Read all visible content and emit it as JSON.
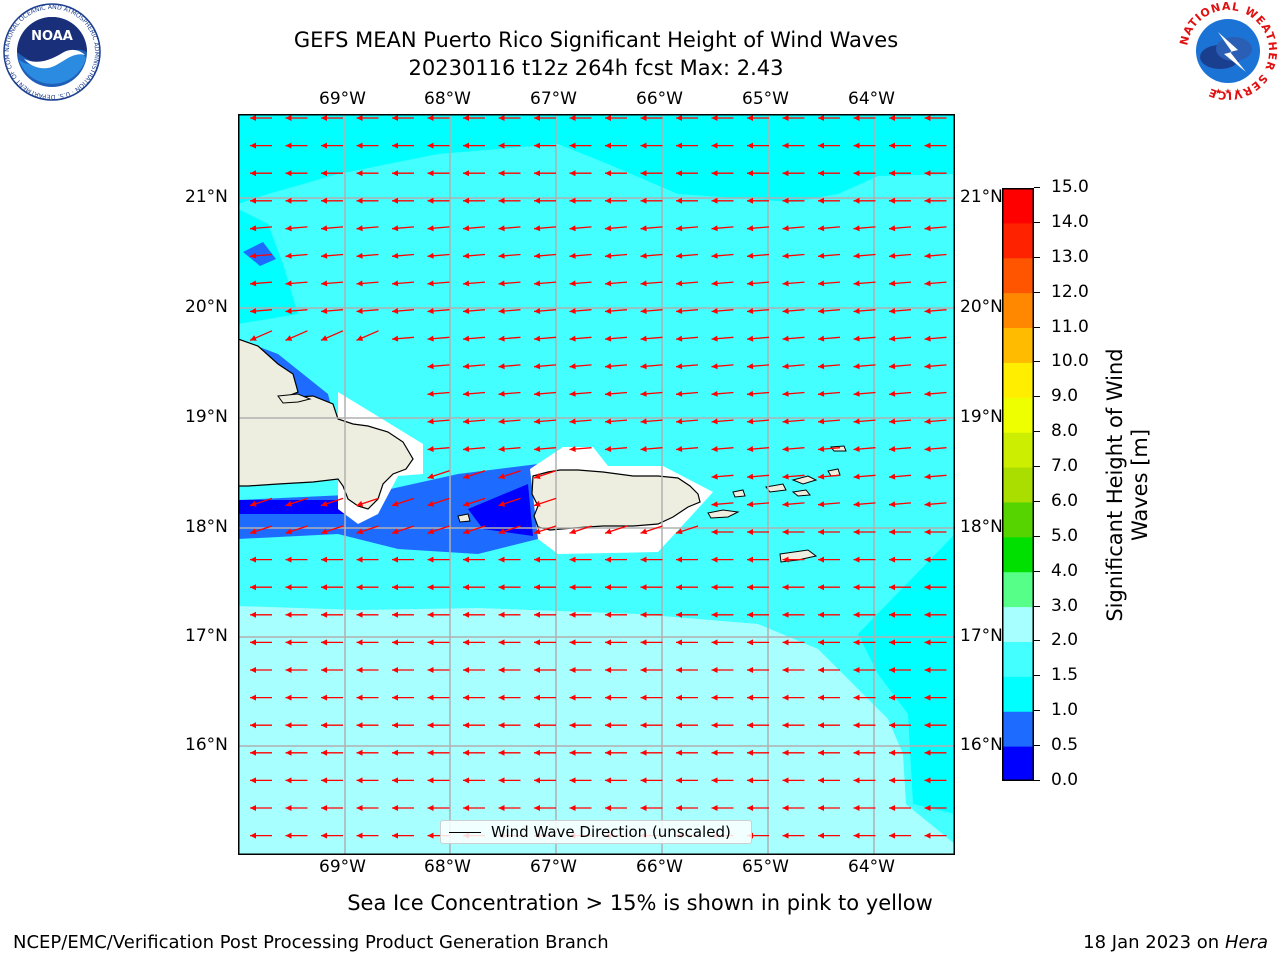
{
  "header": {
    "title_line1": "GEFS MEAN Puerto Rico Significant Height of Wind Waves",
    "title_line2": "20230116 t12z 264h fcst   Max: 2.43"
  },
  "logos": {
    "noaa_text": "NOAA",
    "noaa_ring": "NATIONAL OCEANIC AND ATMOSPHERIC ADMINISTRATION · U.S. DEPARTMENT OF COMMERCE",
    "nws_ring": "NATIONAL WEATHER SERVICE"
  },
  "map": {
    "lon_labels": [
      "69°W",
      "68°W",
      "67°W",
      "66°W",
      "65°W",
      "64°W"
    ],
    "lat_labels": [
      "21°N",
      "20°N",
      "19°N",
      "18°N",
      "17°N",
      "16°N"
    ],
    "legend_label": "Wind Wave Direction (unscaled)",
    "arrow_color": "#ff0000",
    "land_color": "#eeeee0",
    "gridline_color": "#b0b0b0"
  },
  "colorbar": {
    "label_line1": "Significant Height of Wind",
    "label_line2": "Waves [m]",
    "ticks": [
      "0.0",
      "0.5",
      "1.0",
      "1.5",
      "2.0",
      "3.0",
      "4.0",
      "5.0",
      "6.0",
      "7.0",
      "8.0",
      "9.0",
      "10.0",
      "11.0",
      "12.0",
      "13.0",
      "14.0",
      "15.0"
    ],
    "colors": [
      "#0000ff",
      "#1e6cff",
      "#00ffff",
      "#44ffff",
      "#a8ffff",
      "#55ff88",
      "#00e000",
      "#55d400",
      "#aadd00",
      "#ccee00",
      "#eeff00",
      "#ffee00",
      "#ffbb00",
      "#ff8800",
      "#ff5500",
      "#ff2200",
      "#ff0000"
    ]
  },
  "notes": {
    "sea_ice": "Sea Ice Concentration > 15% is shown in pink to yellow"
  },
  "footer": {
    "left": "NCEP/EMC/Verification Post Processing Product Generation Branch",
    "right_prefix": "18 Jan 2023 on ",
    "right_host": "Hera"
  }
}
